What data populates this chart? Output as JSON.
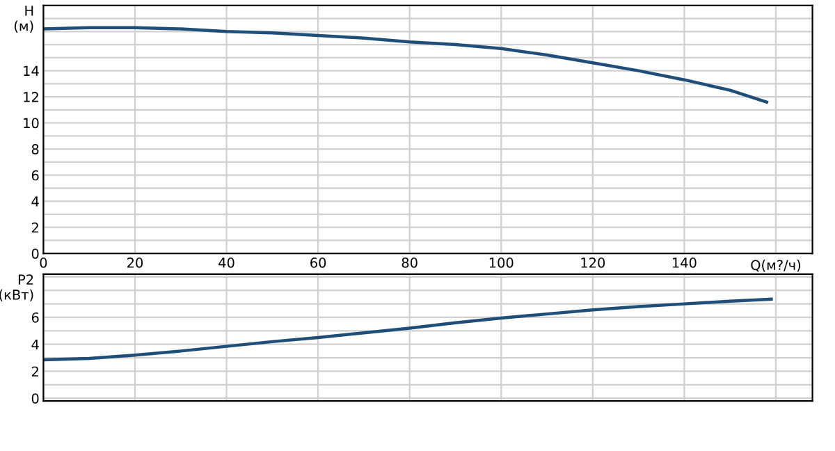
{
  "chart_data": [
    {
      "type": "line",
      "ylabel": "H\n(м)",
      "xlabel": "Q(м?/ч)",
      "x": [
        0,
        10,
        20,
        30,
        40,
        50,
        60,
        70,
        80,
        90,
        100,
        110,
        120,
        130,
        140,
        150,
        158
      ],
      "series": [
        {
          "color": "#1f4e79",
          "values": [
            17.2,
            17.3,
            17.3,
            17.2,
            17.0,
            16.9,
            16.7,
            16.5,
            16.2,
            16.0,
            15.7,
            15.2,
            14.6,
            14.0,
            13.3,
            12.5,
            11.6
          ]
        }
      ],
      "xlim": [
        0,
        168
      ],
      "ylim": [
        0,
        19
      ],
      "xticks": [
        0,
        20,
        40,
        60,
        80,
        100,
        120,
        140,
        {
          "value": 160,
          "label": null
        }
      ],
      "yticks": [
        0,
        {
          "value": 1,
          "label": null
        },
        2,
        {
          "value": 3,
          "label": null
        },
        4,
        {
          "value": 5,
          "label": null
        },
        6,
        {
          "value": 7,
          "label": null
        },
        8,
        {
          "value": 9,
          "label": null
        },
        10,
        {
          "value": 11,
          "label": null
        },
        12,
        {
          "value": 13,
          "label": null
        },
        14,
        {
          "value": 15,
          "label": null
        },
        {
          "value": 16,
          "label": null
        },
        {
          "value": 17,
          "label": null
        },
        {
          "value": 18,
          "label": null
        }
      ],
      "grid": true,
      "legend": false,
      "marker": "none",
      "line_style": "solid"
    },
    {
      "type": "line",
      "ylabel": "P2\n(кВт)",
      "x": [
        0,
        10,
        20,
        30,
        40,
        50,
        60,
        70,
        80,
        90,
        100,
        110,
        120,
        130,
        140,
        150,
        159
      ],
      "series": [
        {
          "color": "#1f4e79",
          "values": [
            2.85,
            2.95,
            3.2,
            3.5,
            3.85,
            4.2,
            4.5,
            4.85,
            5.2,
            5.6,
            5.95,
            6.25,
            6.55,
            6.8,
            7.0,
            7.2,
            7.35
          ]
        }
      ],
      "xlim": [
        0,
        168
      ],
      "ylim": [
        -0.2,
        9.2
      ],
      "xticks": [
        {
          "value": 0,
          "label": null
        },
        {
          "value": 20,
          "label": null
        },
        {
          "value": 40,
          "label": null
        },
        {
          "value": 60,
          "label": null
        },
        {
          "value": 80,
          "label": null
        },
        {
          "value": 100,
          "label": null
        },
        {
          "value": 120,
          "label": null
        },
        {
          "value": 140,
          "label": null
        },
        {
          "value": 160,
          "label": null
        }
      ],
      "yticks": [
        0,
        {
          "value": 1,
          "label": null
        },
        2,
        {
          "value": 3,
          "label": null
        },
        4,
        {
          "value": 5,
          "label": null
        },
        6,
        {
          "value": 7,
          "label": null
        },
        {
          "value": 8,
          "label": null
        },
        {
          "value": 9,
          "label": null
        }
      ],
      "tick_labels": "y",
      "grid": true,
      "legend": false,
      "marker": "none",
      "line_style": "solid"
    }
  ]
}
